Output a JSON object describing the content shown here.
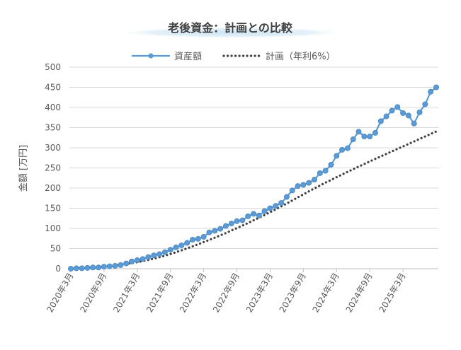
{
  "chart_data": {
    "type": "line",
    "title": "老後資金：計画との比較",
    "xlabel": "",
    "ylabel": "金額 [万円]",
    "ylim": [
      0,
      500
    ],
    "yticks": [
      0,
      50,
      100,
      150,
      200,
      250,
      300,
      350,
      400,
      450,
      500
    ],
    "grid": "horizontal",
    "legend_position": "top",
    "x_tick_labels": [
      "2020年3月",
      "2020年9月",
      "2021年3月",
      "2021年9月",
      "2022年3月",
      "2022年9月",
      "2023年3月",
      "2023年9月",
      "2024年3月",
      "2024年9月",
      "2025年3月"
    ],
    "x_start": "2020年3月",
    "series": [
      {
        "name": "資産額",
        "style": "line-marker",
        "color": "#5B9BD5",
        "values": [
          0,
          1,
          1,
          2,
          3,
          3,
          5,
          6,
          7,
          9,
          13,
          18,
          21,
          24,
          29,
          33,
          36,
          41,
          47,
          53,
          58,
          64,
          72,
          74,
          79,
          90,
          94,
          99,
          106,
          112,
          118,
          120,
          130,
          136,
          132,
          143,
          150,
          156,
          163,
          178,
          194,
          205,
          208,
          213,
          221,
          237,
          243,
          258,
          280,
          295,
          299,
          321,
          340,
          328,
          328,
          337,
          366,
          378,
          392,
          401,
          386,
          380,
          360,
          388,
          408,
          439,
          450
        ]
      },
      {
        "name": "計画（年利6%）",
        "style": "dotted",
        "color": "#404040",
        "values": [
          0.0,
          0.8,
          1.7,
          2.5,
          3.4,
          4.4,
          5.4,
          6.7,
          8.1,
          9.6,
          11.5,
          13.6,
          16.1,
          18.7,
          21.7,
          24.9,
          28.4,
          32.2,
          36.4,
          40.8,
          45.7,
          50.6,
          55.5,
          60.6,
          66.0,
          71.4,
          77.0,
          82.7,
          88.5,
          94.5,
          100.7,
          106.9,
          113.3,
          119.8,
          126.5,
          133.3,
          140.2,
          147.3,
          154.5,
          161.8,
          169.3,
          177.0,
          184.6,
          192.0,
          199.2,
          206.4,
          213.3,
          220.2,
          226.9,
          233.6,
          240.2,
          246.8,
          253.3,
          259.7,
          266.1,
          272.4,
          278.6,
          284.8,
          291.0,
          297.2,
          303.4,
          309.5,
          315.7,
          321.9,
          328.0,
          334.2,
          340.3
        ]
      }
    ]
  }
}
